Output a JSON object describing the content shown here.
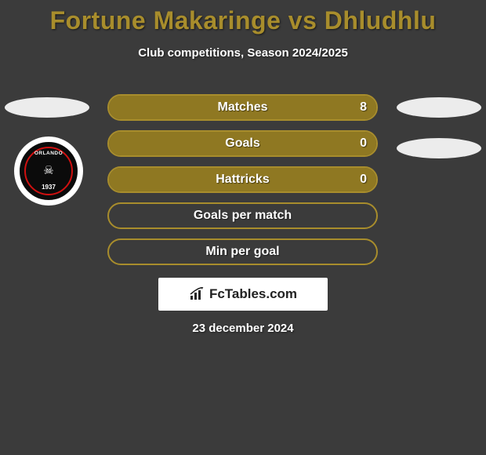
{
  "title": {
    "text": "Fortune Makaringe vs Dhludhlu",
    "color": "#a88d2c"
  },
  "subtitle": "Club competitions, Season 2024/2025",
  "background_color": "#3b3b3b",
  "ellipse_color": "#ececec",
  "badge": {
    "outer_bg": "#0b0b0b",
    "outer_border": "#ffffff",
    "inner_border": "#d01010",
    "top_text": "ORLANDO",
    "year": "1937"
  },
  "stats": {
    "border_color": "#a88d2c",
    "fill_color": "#8f7822",
    "text_color": "#ffffff",
    "rows": [
      {
        "label": "Matches",
        "value": "8",
        "fill_pct": 100
      },
      {
        "label": "Goals",
        "value": "0",
        "fill_pct": 100
      },
      {
        "label": "Hattricks",
        "value": "0",
        "fill_pct": 100
      },
      {
        "label": "Goals per match",
        "value": "",
        "fill_pct": 0
      },
      {
        "label": "Min per goal",
        "value": "",
        "fill_pct": 0
      }
    ]
  },
  "brand": {
    "box_bg": "#ffffff",
    "text": "FcTables.com",
    "text_color": "#222222",
    "icon_color": "#222222"
  },
  "date": "23 december 2024"
}
